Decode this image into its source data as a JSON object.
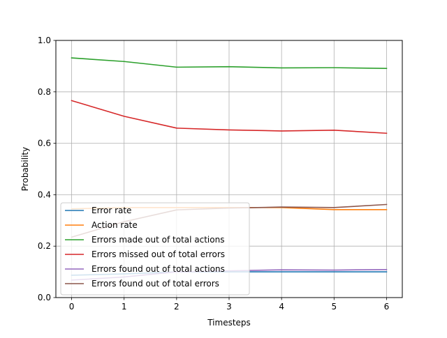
{
  "chart_data": {
    "type": "line",
    "xlabel": "Timesteps",
    "ylabel": "Probability",
    "xlim": [
      -0.3,
      6.3
    ],
    "ylim": [
      0.0,
      1.0
    ],
    "x_ticks": [
      0,
      1,
      2,
      3,
      4,
      5,
      6
    ],
    "y_ticks": [
      0.0,
      0.2,
      0.4,
      0.6,
      0.8,
      1.0
    ],
    "x_tick_labels": [
      "0",
      "1",
      "2",
      "3",
      "4",
      "5",
      "6"
    ],
    "y_tick_labels": [
      "0.0",
      "0.2",
      "0.4",
      "0.6",
      "0.8",
      "1.0"
    ],
    "grid": true,
    "legend_position": "lower-left",
    "x": [
      0,
      1,
      2,
      3,
      4,
      5,
      6
    ],
    "series": [
      {
        "name": "Error rate",
        "color": "#1f77b4",
        "values": [
          0.087,
          0.092,
          0.1,
          0.1,
          0.1,
          0.1,
          0.1
        ]
      },
      {
        "name": "Action rate",
        "color": "#ff7f0e",
        "values": [
          0.345,
          0.35,
          0.35,
          0.35,
          0.35,
          0.342,
          0.342
        ]
      },
      {
        "name": "Errors made out of total actions",
        "color": "#2ca02c",
        "values": [
          0.932,
          0.918,
          0.896,
          0.898,
          0.893,
          0.894,
          0.891
        ]
      },
      {
        "name": "Errors missed out of total errors",
        "color": "#d62728",
        "values": [
          0.766,
          0.705,
          0.659,
          0.652,
          0.648,
          0.651,
          0.639
        ]
      },
      {
        "name": "Errors found out of total actions",
        "color": "#9467bd",
        "values": [
          0.068,
          0.08,
          0.1,
          0.104,
          0.108,
          0.107,
          0.109
        ]
      },
      {
        "name": "Errors found out of total errors",
        "color": "#8c564b",
        "values": [
          0.235,
          0.295,
          0.341,
          0.348,
          0.352,
          0.35,
          0.362
        ]
      }
    ]
  }
}
